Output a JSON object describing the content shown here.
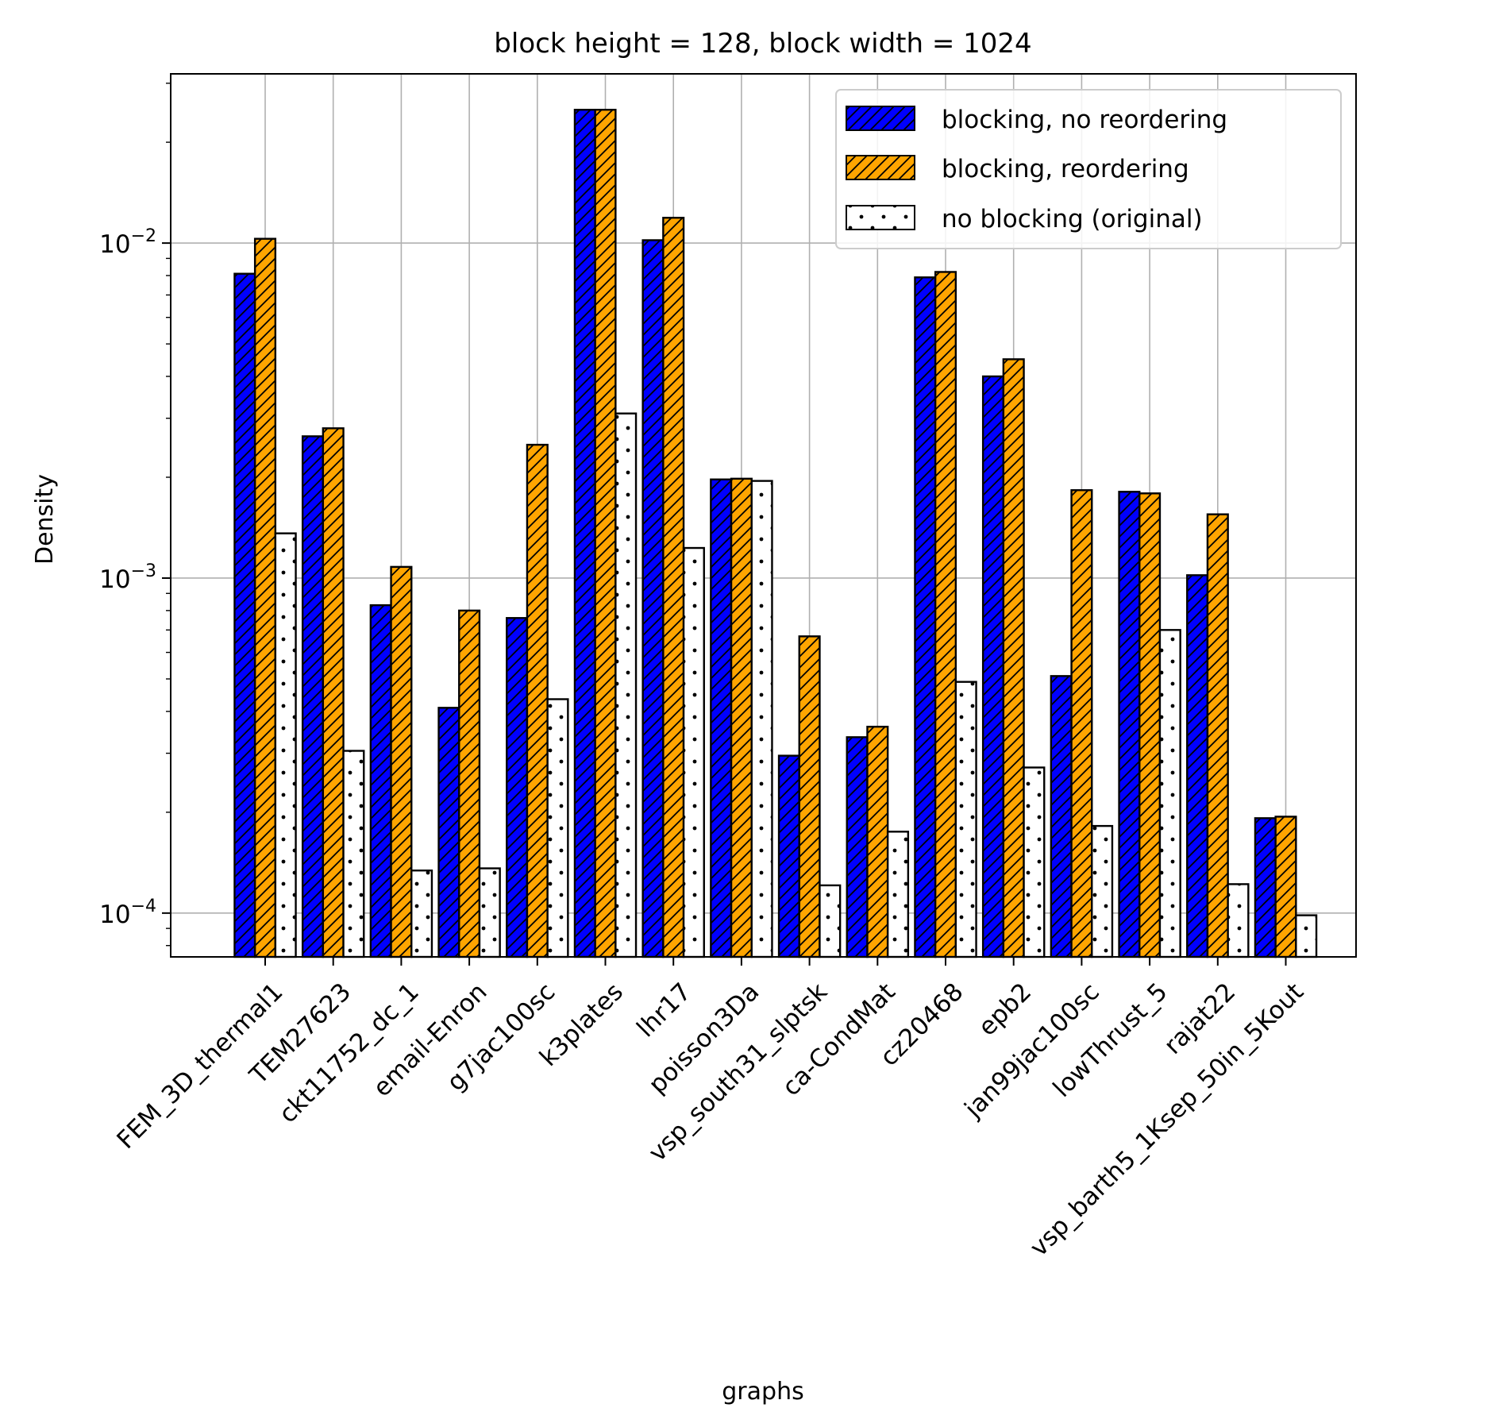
{
  "chart_data": {
    "type": "bar",
    "title": "block height = 128, block width = 1024",
    "xlabel": "graphs",
    "ylabel": "Density",
    "y_scale": "log",
    "ylim": [
      7.4e-05,
      0.032
    ],
    "y_ticks": [
      {
        "value": 0.0001,
        "base": "10",
        "exp": "−4"
      },
      {
        "value": 0.001,
        "base": "10",
        "exp": "−3"
      },
      {
        "value": 0.01,
        "base": "10",
        "exp": "−2"
      }
    ],
    "grid": true,
    "legend_position": "top-right",
    "tick_label_rotation": 45,
    "categories": [
      "FEM_3D_thermal1",
      "TEM27623",
      "ckt11752_dc_1",
      "email-Enron",
      "g7jac100sc",
      "k3plates",
      "lhr17",
      "poisson3Da",
      "vsp_south31_slptsk",
      "ca-CondMat",
      "cz20468",
      "epb2",
      "jan99jac100sc",
      "lowThrust_5",
      "rajat22",
      "vsp_barth5_1Ksep_50in_5Kout"
    ],
    "series": [
      {
        "name": "blocking, no reordering",
        "color": "#0000ff",
        "hatch": "diagonal",
        "values": [
          0.0081,
          0.00265,
          0.00083,
          0.00041,
          0.00076,
          0.025,
          0.0102,
          0.00197,
          0.000295,
          0.000335,
          0.0079,
          0.004,
          0.00051,
          0.00181,
          0.00102,
          0.000192
        ]
      },
      {
        "name": "blocking, reordering",
        "color": "#ffa500",
        "hatch": "diagonal",
        "values": [
          0.0103,
          0.0028,
          0.00108,
          0.0008,
          0.0025,
          0.025,
          0.0119,
          0.00198,
          0.00067,
          0.00036,
          0.0082,
          0.0045,
          0.00183,
          0.00179,
          0.00155,
          0.000194
        ]
      },
      {
        "name": "no blocking (original)",
        "color": "#ffffff",
        "hatch": "dots",
        "values": [
          0.00136,
          0.000305,
          0.000134,
          0.000136,
          0.000435,
          0.0031,
          0.00123,
          0.00195,
          0.000121,
          0.000175,
          0.00049,
          0.000272,
          0.000182,
          0.0007,
          0.000122,
          9.85e-05
        ]
      }
    ]
  }
}
